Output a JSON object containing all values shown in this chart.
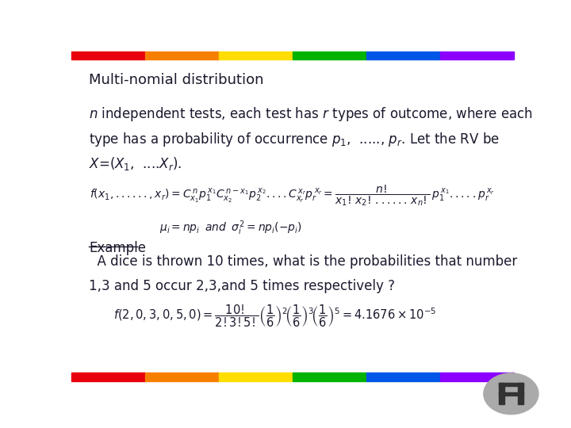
{
  "background_color": "#ffffff",
  "text_color": "#1a1a2e",
  "title": "Multi-nomial distribution",
  "body_line1": "$n$ independent tests, each test has $r$ types of outcome, where each",
  "body_line2": "type has a probability of occurrence $p_1$,  ....., $p_r$. Let the RV be",
  "body_line3": "$X$=$(X_1$,  ....$X_r)$.",
  "formula1": "$f(x_1,......,x_r) = C^{\\,n}_{x_1} p_1^{\\,x_1} C^{\\,n-x_1}_{x_2} p_2^{\\,x_2}....C^{\\,x_r}_{x_r} p_r^{\\,x_r} = \\dfrac{n!}{x_1!\\,x_2!\\,......\\,x_n!}\\, p_1^{\\,x_1}.....p_r^{\\,x_r}$",
  "formula2": "$\\mu_i = np_i \\;\\; and \\;\\; \\sigma_i^2 = np_i(-p_i)$",
  "example_label": "Example",
  "example_line1": "  A dice is thrown 10 times, what is the probabilities that number",
  "example_line2": "1,3 and 5 occur 2,3,and 5 times respectively ?",
  "formula3": "$f(2,0,3,0,5,0) = \\dfrac{10!}{2!3!5!}\\left(\\dfrac{1}{6}\\right)^2\\!\\left(\\dfrac{1}{6}\\right)^3\\!\\left(\\dfrac{1}{6}\\right)^5 = 4.1676\\times10^{-5}$",
  "font_size_title": 13,
  "font_size_body": 12,
  "font_size_formula": 10,
  "bar_colors": [
    "#e8000d",
    "#f77f00",
    "#ffdd00",
    "#00b300",
    "#0057e7",
    "#8b00ff"
  ]
}
